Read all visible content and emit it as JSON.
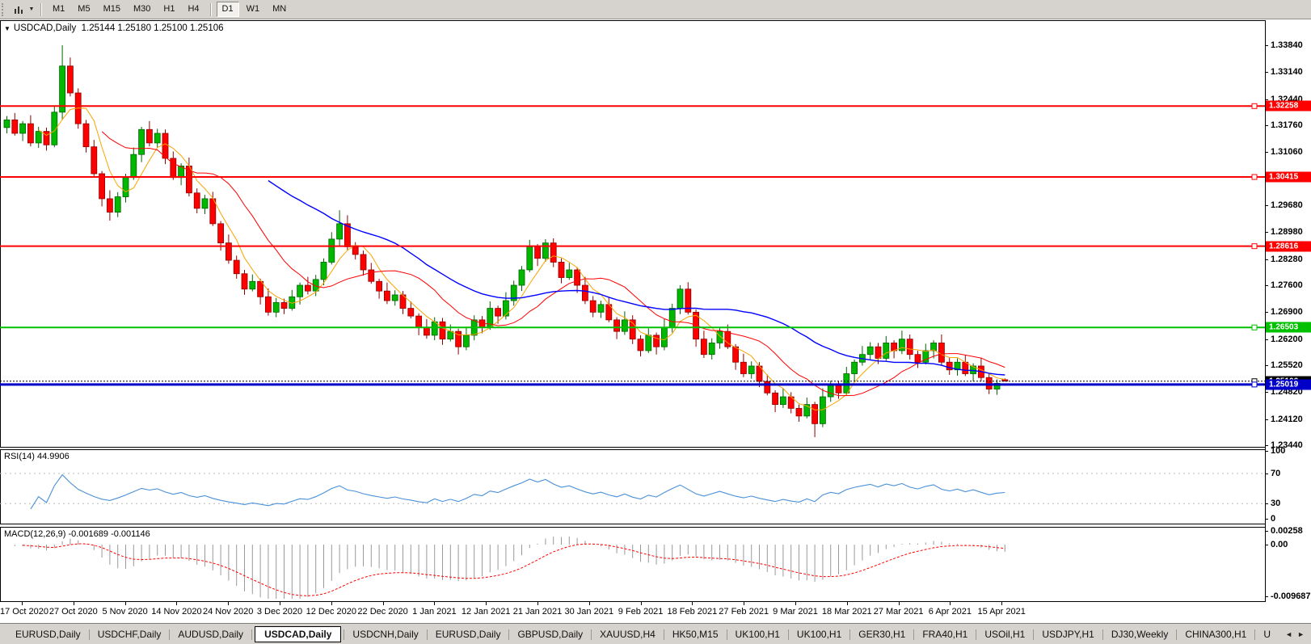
{
  "toolbar": {
    "timeframes": [
      "M1",
      "M5",
      "M15",
      "M30",
      "H1",
      "H4",
      "D1",
      "W1",
      "MN"
    ],
    "active_timeframe": "D1",
    "dropdown_icon": "▼"
  },
  "chart_header": {
    "dropdown_icon": "▼",
    "symbol": "USDCAD,Daily",
    "ohlc": "1.25144 1.25180 1.25100 1.25106"
  },
  "main_chart": {
    "axis_labels": [
      "1.33840",
      "1.33140",
      "1.32440",
      "1.31760",
      "1.31060",
      "1.29680",
      "1.28980",
      "1.28280",
      "1.27600",
      "1.26900",
      "1.26200",
      "1.25520",
      "1.24820",
      "1.24120",
      "1.23440"
    ],
    "hlines": [
      {
        "price": 1.32258,
        "label": "1.32258",
        "color": "#ff0000",
        "width": 2
      },
      {
        "price": 1.30415,
        "label": "1.30415",
        "color": "#ff0000",
        "width": 2
      },
      {
        "price": 1.28616,
        "label": "1.28616",
        "color": "#ff0000",
        "width": 2
      },
      {
        "price": 1.26503,
        "label": "1.26503",
        "color": "#00c000",
        "width": 2
      },
      {
        "price": 1.25106,
        "label": "1.25106",
        "color": "#000000",
        "width": 1
      },
      {
        "price": 1.25019,
        "label": "1.25019",
        "color": "#0000c8",
        "width": 3
      }
    ],
    "colors": {
      "up": "#00b800",
      "up_border": "#006400",
      "down": "#ff0000",
      "down_border": "#900000",
      "background": "#ffffff",
      "border": "#000000"
    }
  },
  "rsi_pane": {
    "label": "RSI(14) 44.9906",
    "axis_labels": [
      {
        "v": 100,
        "t": "100"
      },
      {
        "v": 70,
        "t": "70"
      },
      {
        "v": 30,
        "t": "30"
      },
      {
        "v": 0,
        "t": "0"
      }
    ],
    "levels": [
      70,
      30
    ],
    "line_color": "#4a90d9"
  },
  "macd_pane": {
    "label": "MACD(12,26,9) -0.001689 -0.001146",
    "axis_labels": [
      {
        "v": 0.00258,
        "t": "0.00258"
      },
      {
        "v": 0,
        "t": "0.00"
      },
      {
        "v": -0.009687,
        "t": "-0.009687"
      }
    ],
    "histogram_color": "#999999",
    "signal_color": "#ff0000"
  },
  "date_axis": {
    "labels": [
      "17 Oct 2020",
      "27 Oct 2020",
      "5 Nov 2020",
      "14 Nov 2020",
      "24 Nov 2020",
      "3 Dec 2020",
      "12 Dec 2020",
      "22 Dec 2020",
      "1 Jan 2021",
      "12 Jan 2021",
      "21 Jan 2021",
      "30 Jan 2021",
      "9 Feb 2021",
      "18 Feb 2021",
      "27 Feb 2021",
      "9 Mar 2021",
      "18 Mar 2021",
      "27 Mar 2021",
      "6 Apr 2021",
      "15 Apr 2021"
    ]
  },
  "tab_bar": {
    "tabs": [
      "EURUSD,Daily",
      "USDCHF,Daily",
      "AUDUSD,Daily",
      "USDCAD,Daily",
      "USDCNH,Daily",
      "EURUSD,Daily",
      "GBPUSD,Daily",
      "XAUUSD,H4",
      "HK50,M15",
      "UK100,H1",
      "UK100,H1",
      "GER30,H1",
      "FRA40,H1",
      "USOil,H1",
      "USDJPY,H1",
      "DJ30,Weekly",
      "CHINA300,H1",
      "U"
    ],
    "active_index": 3,
    "scroll_left_icon": "◄",
    "scroll_right_icon": "►"
  },
  "chart_data": {
    "type": "candlestick",
    "symbol": "USDCAD",
    "timeframe": "Daily",
    "title": "USDCAD,Daily 1.25144 1.25180 1.25100 1.25106",
    "price_axis_range": [
      1.233,
      1.344
    ],
    "moving_averages": [
      {
        "period": 5,
        "color": "#f7a400",
        "width": 1
      },
      {
        "period": 13,
        "color": "#ff0000",
        "width": 1
      },
      {
        "period": 34,
        "color": "#0000ff",
        "width": 1.4
      }
    ],
    "indicators": [
      {
        "name": "RSI",
        "params": "14",
        "current": 44.9906,
        "range": [
          0,
          100
        ],
        "levels": [
          70,
          30
        ]
      },
      {
        "name": "MACD",
        "params": "12,26,9",
        "current_macd": -0.001689,
        "current_signal": -0.001146,
        "axis_range": [
          -0.009687,
          0.00258
        ]
      }
    ],
    "candles": [
      [
        1.317,
        1.32,
        1.3155,
        1.319
      ],
      [
        1.319,
        1.3208,
        1.3149,
        1.3155
      ],
      [
        1.3155,
        1.3187,
        1.3135,
        1.318
      ],
      [
        1.318,
        1.3202,
        1.3121,
        1.313
      ],
      [
        1.313,
        1.3172,
        1.3117,
        1.316
      ],
      [
        1.316,
        1.317,
        1.311,
        1.3125
      ],
      [
        1.3125,
        1.3228,
        1.3119,
        1.321
      ],
      [
        1.321,
        1.3384,
        1.319,
        1.333
      ],
      [
        1.333,
        1.3352,
        1.3251,
        1.326
      ],
      [
        1.326,
        1.3272,
        1.3167,
        1.318
      ],
      [
        1.318,
        1.319,
        1.3105,
        1.312
      ],
      [
        1.312,
        1.3138,
        1.3044,
        1.305
      ],
      [
        1.305,
        1.3057,
        1.2965,
        1.2985
      ],
      [
        1.2985,
        1.3007,
        1.2928,
        1.295
      ],
      [
        1.295,
        1.3002,
        1.2937,
        1.299
      ],
      [
        1.299,
        1.305,
        1.2975,
        1.304
      ],
      [
        1.304,
        1.3118,
        1.3034,
        1.31
      ],
      [
        1.31,
        1.3172,
        1.308,
        1.3165
      ],
      [
        1.3165,
        1.3187,
        1.3121,
        1.313
      ],
      [
        1.313,
        1.3167,
        1.3117,
        1.3155
      ],
      [
        1.3155,
        1.3165,
        1.3075,
        1.309
      ],
      [
        1.309,
        1.3108,
        1.3034,
        1.304
      ],
      [
        1.304,
        1.3077,
        1.302,
        1.307
      ],
      [
        1.307,
        1.3092,
        1.2991,
        1.3
      ],
      [
        1.3,
        1.3012,
        1.2947,
        1.296
      ],
      [
        1.296,
        1.2995,
        1.2945,
        1.2985
      ],
      [
        1.2985,
        1.3003,
        1.2914,
        1.292
      ],
      [
        1.292,
        1.2927,
        1.285,
        1.287
      ],
      [
        1.287,
        1.2892,
        1.2816,
        1.2825
      ],
      [
        1.2825,
        1.2837,
        1.2777,
        1.279
      ],
      [
        1.279,
        1.28,
        1.2735,
        1.275
      ],
      [
        1.275,
        1.2788,
        1.2744,
        1.277
      ],
      [
        1.277,
        1.2777,
        1.271,
        1.273
      ],
      [
        1.273,
        1.2752,
        1.2681,
        1.269
      ],
      [
        1.269,
        1.2727,
        1.2677,
        1.2715
      ],
      [
        1.2715,
        1.2725,
        1.2685,
        1.27
      ],
      [
        1.27,
        1.2748,
        1.2694,
        1.273
      ],
      [
        1.273,
        1.2767,
        1.271,
        1.276
      ],
      [
        1.276,
        1.2782,
        1.2736,
        1.2745
      ],
      [
        1.2745,
        1.2787,
        1.2732,
        1.2775
      ],
      [
        1.2775,
        1.283,
        1.276,
        1.282
      ],
      [
        1.282,
        1.2898,
        1.2814,
        1.288
      ],
      [
        1.288,
        1.2955,
        1.286,
        1.292
      ],
      [
        1.292,
        1.2942,
        1.2851,
        1.286
      ],
      [
        1.286,
        1.2872,
        1.2827,
        1.284
      ],
      [
        1.284,
        1.285,
        1.2785,
        1.28
      ],
      [
        1.28,
        1.2818,
        1.2764,
        1.277
      ],
      [
        1.277,
        1.2777,
        1.2725,
        1.2745
      ],
      [
        1.2745,
        1.2767,
        1.2711,
        1.272
      ],
      [
        1.272,
        1.2747,
        1.2707,
        1.2735
      ],
      [
        1.2735,
        1.2745,
        1.2685,
        1.27
      ],
      [
        1.27,
        1.2718,
        1.2674,
        1.268
      ],
      [
        1.268,
        1.2687,
        1.263,
        1.265
      ],
      [
        1.265,
        1.2672,
        1.2621,
        1.263
      ],
      [
        1.263,
        1.2677,
        1.2617,
        1.2665
      ],
      [
        1.2665,
        1.2675,
        1.2605,
        1.262
      ],
      [
        1.262,
        1.2658,
        1.2614,
        1.264
      ],
      [
        1.264,
        1.2647,
        1.258,
        1.26
      ],
      [
        1.26,
        1.2652,
        1.2591,
        1.263
      ],
      [
        1.263,
        1.2682,
        1.2617,
        1.267
      ],
      [
        1.267,
        1.268,
        1.2635,
        1.265
      ],
      [
        1.265,
        1.2718,
        1.2644,
        1.27
      ],
      [
        1.27,
        1.2707,
        1.266,
        1.268
      ],
      [
        1.268,
        1.2742,
        1.2671,
        1.272
      ],
      [
        1.272,
        1.2772,
        1.2707,
        1.276
      ],
      [
        1.276,
        1.281,
        1.2745,
        1.28
      ],
      [
        1.28,
        1.2878,
        1.2794,
        1.286
      ],
      [
        1.286,
        1.2867,
        1.281,
        1.283
      ],
      [
        1.283,
        1.288,
        1.2821,
        1.287
      ],
      [
        1.287,
        1.2882,
        1.2807,
        1.282
      ],
      [
        1.282,
        1.283,
        1.2765,
        1.278
      ],
      [
        1.278,
        1.2818,
        1.2774,
        1.28
      ],
      [
        1.28,
        1.2807,
        1.274,
        1.276
      ],
      [
        1.276,
        1.2782,
        1.2711,
        1.272
      ],
      [
        1.272,
        1.2732,
        1.2677,
        1.269
      ],
      [
        1.269,
        1.272,
        1.2675,
        1.271
      ],
      [
        1.271,
        1.2728,
        1.2664,
        1.267
      ],
      [
        1.267,
        1.2677,
        1.262,
        1.264
      ],
      [
        1.264,
        1.2692,
        1.2631,
        1.267
      ],
      [
        1.267,
        1.2682,
        1.2607,
        1.262
      ],
      [
        1.262,
        1.263,
        1.2575,
        1.259
      ],
      [
        1.259,
        1.2648,
        1.2584,
        1.263
      ],
      [
        1.263,
        1.2637,
        1.258,
        1.26
      ],
      [
        1.26,
        1.2672,
        1.2591,
        1.265
      ],
      [
        1.265,
        1.2712,
        1.2637,
        1.27
      ],
      [
        1.27,
        1.276,
        1.2685,
        1.275
      ],
      [
        1.275,
        1.2768,
        1.2684,
        1.269
      ],
      [
        1.269,
        1.2697,
        1.26,
        1.262
      ],
      [
        1.262,
        1.2642,
        1.2571,
        1.258
      ],
      [
        1.258,
        1.2622,
        1.2567,
        1.261
      ],
      [
        1.261,
        1.265,
        1.2595,
        1.264
      ],
      [
        1.264,
        1.2658,
        1.2594,
        1.26
      ],
      [
        1.26,
        1.2607,
        1.254,
        1.256
      ],
      [
        1.256,
        1.2582,
        1.2521,
        1.253
      ],
      [
        1.253,
        1.2562,
        1.2517,
        1.255
      ],
      [
        1.255,
        1.256,
        1.2495,
        1.251
      ],
      [
        1.251,
        1.2528,
        1.2474,
        1.248
      ],
      [
        1.248,
        1.2487,
        1.243,
        1.245
      ],
      [
        1.245,
        1.2492,
        1.2441,
        1.247
      ],
      [
        1.247,
        1.2482,
        1.2427,
        1.244
      ],
      [
        1.244,
        1.245,
        1.2405,
        1.242
      ],
      [
        1.242,
        1.2468,
        1.2414,
        1.245
      ],
      [
        1.245,
        1.2457,
        1.2365,
        1.24
      ],
      [
        1.24,
        1.2492,
        1.2391,
        1.247
      ],
      [
        1.247,
        1.2512,
        1.2457,
        1.25
      ],
      [
        1.25,
        1.251,
        1.2465,
        1.248
      ],
      [
        1.248,
        1.2548,
        1.2474,
        1.253
      ],
      [
        1.253,
        1.2567,
        1.251,
        1.256
      ],
      [
        1.256,
        1.2602,
        1.2551,
        1.258
      ],
      [
        1.258,
        1.2612,
        1.2567,
        1.26
      ],
      [
        1.26,
        1.261,
        1.2555,
        1.257
      ],
      [
        1.257,
        1.2628,
        1.2564,
        1.261
      ],
      [
        1.261,
        1.2617,
        1.257,
        1.259
      ],
      [
        1.259,
        1.2642,
        1.2581,
        1.262
      ],
      [
        1.262,
        1.2632,
        1.2567,
        1.258
      ],
      [
        1.258,
        1.259,
        1.2545,
        1.256
      ],
      [
        1.256,
        1.2608,
        1.2554,
        1.259
      ],
      [
        1.259,
        1.2617,
        1.257,
        1.261
      ],
      [
        1.261,
        1.2632,
        1.2551,
        1.256
      ],
      [
        1.256,
        1.2572,
        1.2527,
        1.254
      ],
      [
        1.254,
        1.257,
        1.2525,
        1.256
      ],
      [
        1.256,
        1.2578,
        1.2524,
        1.253
      ],
      [
        1.253,
        1.2557,
        1.251,
        1.255
      ],
      [
        1.255,
        1.2572,
        1.2511,
        1.252
      ],
      [
        1.252,
        1.2532,
        1.2477,
        1.249
      ],
      [
        1.249,
        1.2515,
        1.2475,
        1.2505
      ],
      [
        1.25144,
        1.2518,
        1.251,
        1.25106
      ]
    ]
  }
}
